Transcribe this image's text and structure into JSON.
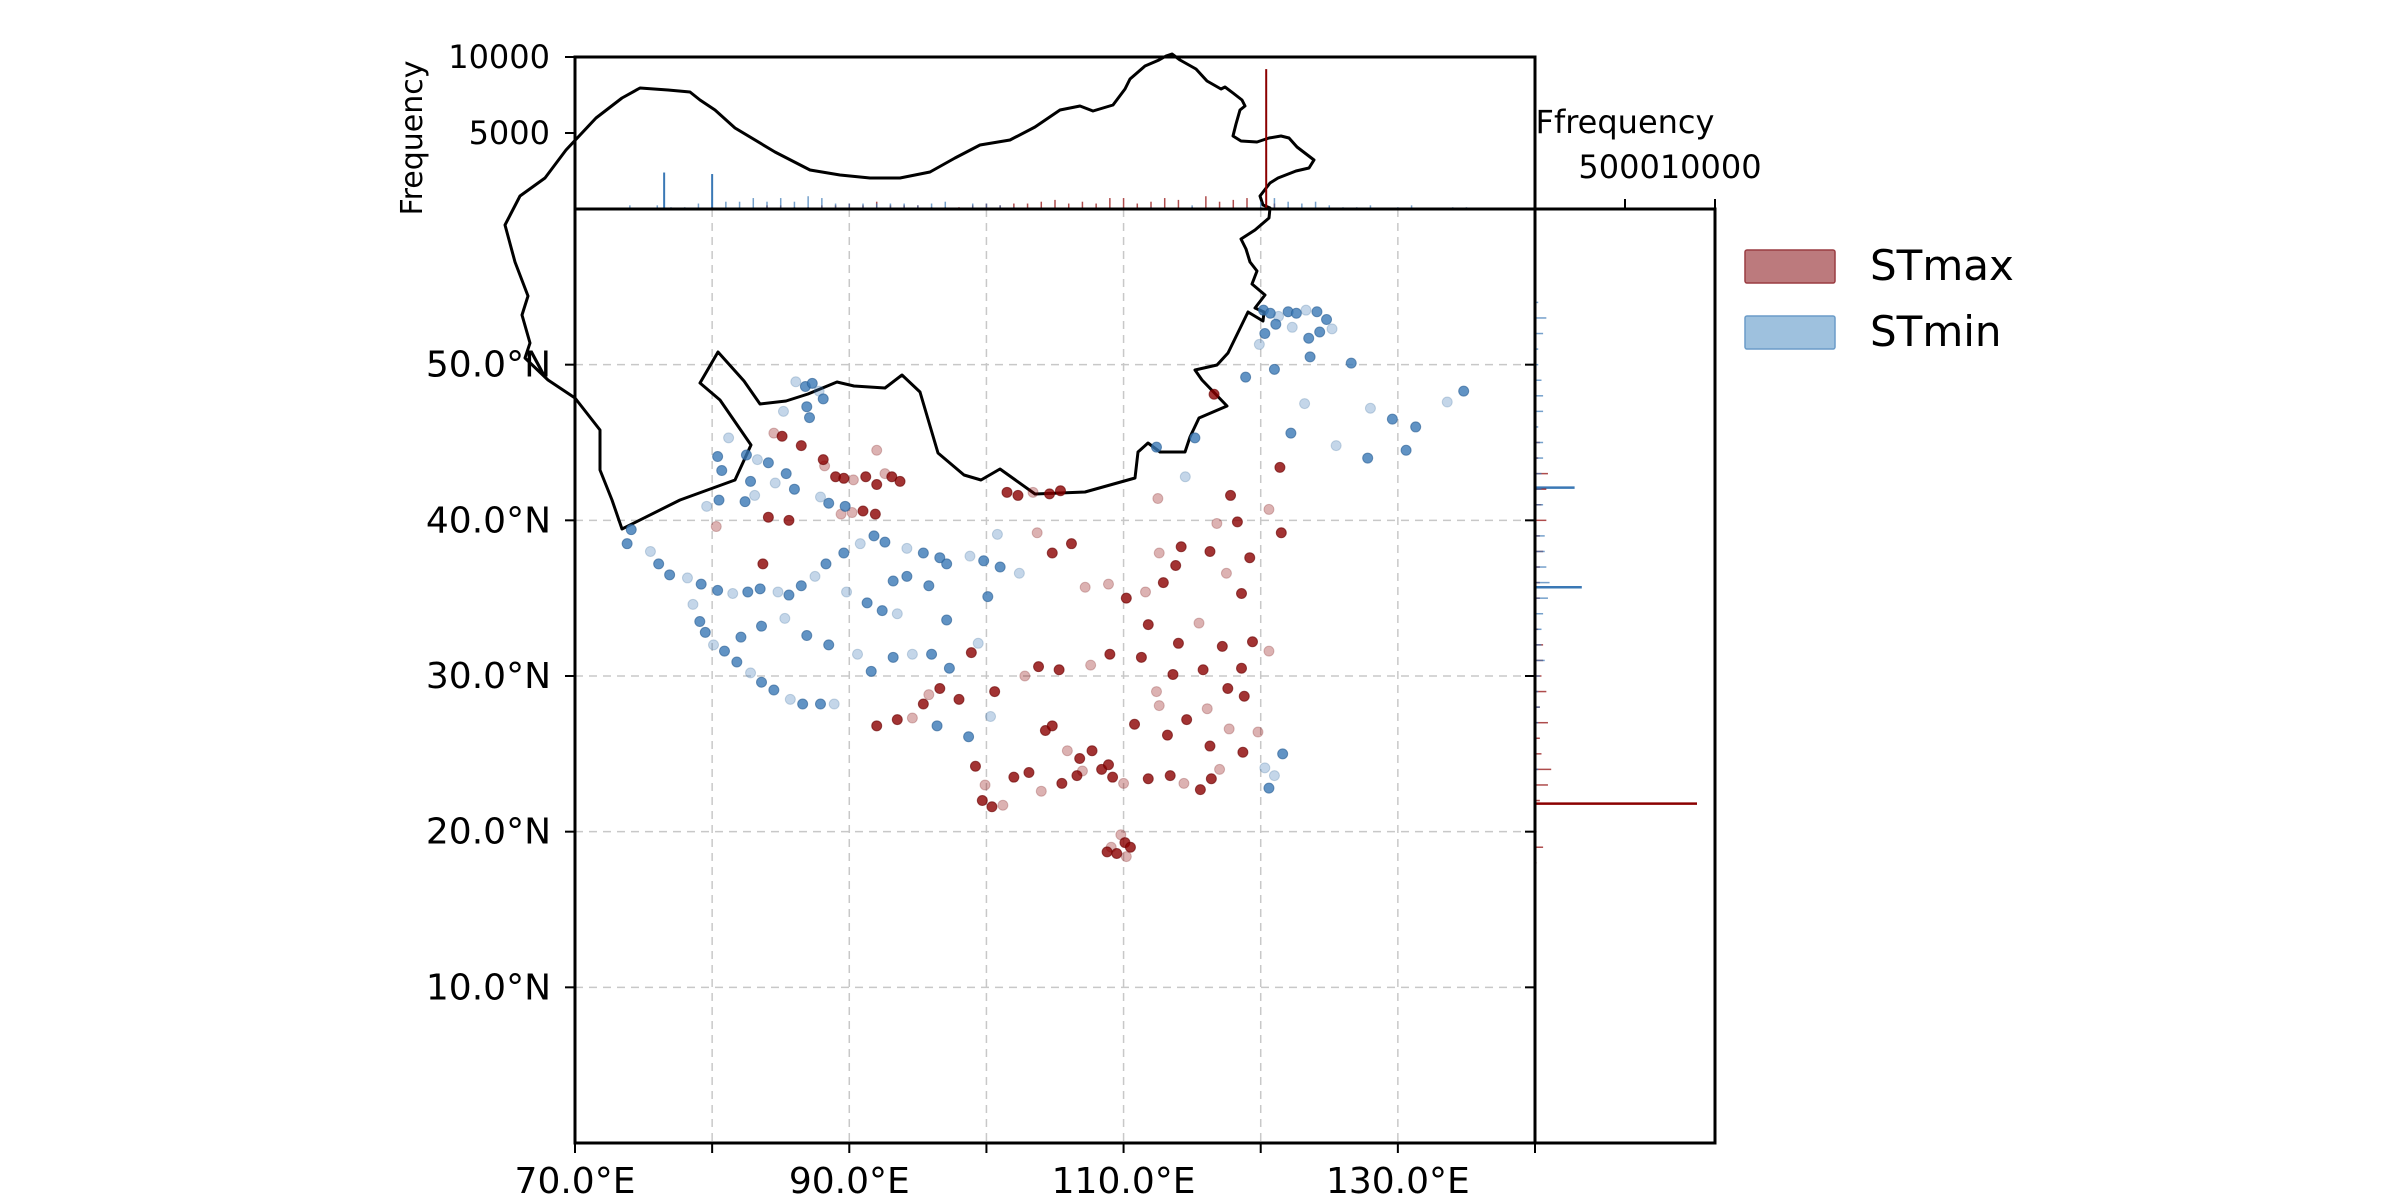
{
  "chart_data": {
    "type": "scatter",
    "subtype": "map scatter with marginal histograms",
    "title": "",
    "xlabel": "",
    "ylabel": "",
    "xlim": [
      70,
      140
    ],
    "ylim": [
      0,
      60
    ],
    "x_ticks": [
      70,
      90,
      110,
      130
    ],
    "x_tick_labels": [
      "70.0°E",
      "90.0°E",
      "110.0°E",
      "130.0°E"
    ],
    "y_ticks": [
      10,
      20,
      30,
      40,
      50
    ],
    "y_tick_labels": [
      "10.0°N",
      "20.0°N",
      "30.0°N",
      "40.0°N",
      "50.0°N"
    ],
    "grid": true,
    "legend_placement": "right",
    "colors": {
      "STmax": "#8b0000",
      "STmin": "#3a78b5",
      "STmax_fill": "#bc7a7d",
      "STmin_fill": "#9ec1de"
    },
    "series": [
      {
        "name": "STmax",
        "points": [
          [
            84.5,
            45.6
          ],
          [
            85.1,
            45.4
          ],
          [
            86.5,
            44.8
          ],
          [
            88.2,
            43.5
          ],
          [
            89.0,
            42.8
          ],
          [
            89.6,
            42.7
          ],
          [
            90.3,
            42.6
          ],
          [
            91.2,
            42.8
          ],
          [
            92.0,
            42.3
          ],
          [
            92.6,
            43.0
          ],
          [
            93.1,
            42.8
          ],
          [
            93.7,
            42.5
          ],
          [
            90.2,
            40.5
          ],
          [
            91.0,
            40.6
          ],
          [
            91.9,
            40.4
          ],
          [
            89.4,
            40.4
          ],
          [
            85.6,
            40.0
          ],
          [
            84.1,
            40.2
          ],
          [
            80.3,
            39.6
          ],
          [
            83.7,
            37.2
          ],
          [
            88.1,
            43.9
          ],
          [
            92.0,
            44.5
          ],
          [
            92.0,
            26.8
          ],
          [
            93.5,
            27.2
          ],
          [
            94.6,
            27.3
          ],
          [
            95.4,
            28.2
          ],
          [
            96.6,
            29.2
          ],
          [
            95.8,
            28.8
          ],
          [
            98.0,
            28.5
          ],
          [
            99.2,
            24.2
          ],
          [
            99.9,
            23.0
          ],
          [
            99.7,
            22.0
          ],
          [
            100.4,
            21.6
          ],
          [
            101.2,
            21.7
          ],
          [
            102.0,
            23.5
          ],
          [
            103.1,
            23.8
          ],
          [
            104.0,
            22.6
          ],
          [
            105.5,
            23.1
          ],
          [
            106.6,
            23.6
          ],
          [
            107.0,
            23.9
          ],
          [
            108.4,
            24.0
          ],
          [
            109.2,
            23.5
          ],
          [
            110.0,
            23.1
          ],
          [
            111.8,
            23.4
          ],
          [
            113.4,
            23.6
          ],
          [
            114.4,
            23.1
          ],
          [
            115.6,
            22.7
          ],
          [
            116.4,
            23.4
          ],
          [
            117.0,
            24.0
          ],
          [
            107.7,
            25.2
          ],
          [
            108.9,
            24.3
          ],
          [
            109.1,
            19.0
          ],
          [
            109.5,
            18.6
          ],
          [
            110.1,
            19.3
          ],
          [
            109.8,
            19.8
          ],
          [
            110.5,
            19.0
          ],
          [
            108.8,
            18.7
          ],
          [
            110.2,
            18.4
          ],
          [
            104.3,
            26.5
          ],
          [
            104.8,
            26.8
          ],
          [
            105.9,
            25.2
          ],
          [
            106.8,
            24.7
          ],
          [
            110.8,
            26.9
          ],
          [
            112.6,
            28.1
          ],
          [
            113.2,
            26.2
          ],
          [
            114.6,
            27.2
          ],
          [
            116.1,
            27.9
          ],
          [
            117.6,
            29.2
          ],
          [
            118.8,
            28.7
          ],
          [
            117.7,
            26.6
          ],
          [
            116.3,
            25.5
          ],
          [
            118.7,
            25.1
          ],
          [
            119.8,
            26.4
          ],
          [
            113.6,
            30.1
          ],
          [
            115.8,
            30.4
          ],
          [
            112.4,
            29.0
          ],
          [
            111.3,
            31.2
          ],
          [
            114.0,
            32.1
          ],
          [
            115.5,
            33.4
          ],
          [
            117.2,
            31.9
          ],
          [
            119.4,
            32.2
          ],
          [
            120.6,
            31.6
          ],
          [
            118.6,
            30.5
          ],
          [
            110.2,
            35.0
          ],
          [
            111.6,
            35.4
          ],
          [
            112.9,
            36.0
          ],
          [
            113.8,
            37.1
          ],
          [
            112.6,
            37.9
          ],
          [
            114.2,
            38.3
          ],
          [
            116.3,
            38.0
          ],
          [
            117.5,
            36.6
          ],
          [
            118.6,
            35.3
          ],
          [
            119.2,
            37.6
          ],
          [
            116.8,
            39.8
          ],
          [
            118.3,
            39.9
          ],
          [
            121.5,
            39.2
          ],
          [
            120.6,
            40.7
          ],
          [
            117.8,
            41.6
          ],
          [
            116.6,
            48.1
          ],
          [
            112.5,
            41.4
          ],
          [
            121.4,
            43.4
          ],
          [
            111.8,
            33.3
          ],
          [
            108.9,
            35.9
          ],
          [
            101.5,
            41.8
          ],
          [
            102.3,
            41.6
          ],
          [
            103.4,
            41.8
          ],
          [
            104.6,
            41.7
          ],
          [
            105.4,
            41.9
          ],
          [
            103.7,
            39.2
          ],
          [
            104.8,
            37.9
          ],
          [
            106.2,
            38.5
          ],
          [
            107.2,
            35.7
          ],
          [
            98.9,
            31.5
          ],
          [
            100.6,
            29.0
          ],
          [
            102.8,
            30.0
          ],
          [
            103.8,
            30.6
          ],
          [
            105.3,
            30.4
          ],
          [
            107.6,
            30.7
          ],
          [
            109.0,
            31.4
          ]
        ],
        "histogram_lon_peak": {
          "lon": 120.4,
          "count": 9200
        },
        "histogram_lat_peak": {
          "lat": 21.8,
          "count": 9000
        }
      },
      {
        "name": "STmin",
        "points": [
          [
            86.1,
            48.9
          ],
          [
            86.8,
            48.6
          ],
          [
            87.3,
            48.8
          ],
          [
            87.8,
            48.3
          ],
          [
            88.1,
            47.8
          ],
          [
            86.9,
            47.3
          ],
          [
            85.2,
            47.0
          ],
          [
            87.1,
            46.6
          ],
          [
            80.4,
            44.1
          ],
          [
            81.2,
            45.3
          ],
          [
            80.7,
            43.2
          ],
          [
            82.5,
            44.2
          ],
          [
            83.3,
            43.9
          ],
          [
            84.1,
            43.7
          ],
          [
            82.8,
            42.5
          ],
          [
            84.6,
            42.4
          ],
          [
            85.4,
            43.0
          ],
          [
            86.0,
            42.0
          ],
          [
            87.9,
            41.5
          ],
          [
            88.5,
            41.1
          ],
          [
            89.7,
            40.9
          ],
          [
            83.1,
            41.6
          ],
          [
            82.4,
            41.2
          ],
          [
            80.5,
            41.3
          ],
          [
            79.6,
            40.9
          ],
          [
            74.1,
            39.4
          ],
          [
            73.8,
            38.5
          ],
          [
            75.5,
            38.0
          ],
          [
            76.1,
            37.2
          ],
          [
            76.9,
            36.5
          ],
          [
            78.2,
            36.3
          ],
          [
            79.2,
            35.9
          ],
          [
            80.4,
            35.5
          ],
          [
            81.5,
            35.3
          ],
          [
            82.6,
            35.4
          ],
          [
            83.5,
            35.6
          ],
          [
            84.8,
            35.4
          ],
          [
            85.6,
            35.2
          ],
          [
            86.5,
            35.8
          ],
          [
            87.5,
            36.4
          ],
          [
            88.3,
            37.2
          ],
          [
            89.6,
            37.9
          ],
          [
            90.8,
            38.5
          ],
          [
            91.8,
            39.0
          ],
          [
            92.6,
            38.6
          ],
          [
            94.2,
            38.2
          ],
          [
            95.4,
            37.9
          ],
          [
            96.6,
            37.6
          ],
          [
            78.6,
            34.6
          ],
          [
            79.1,
            33.5
          ],
          [
            79.5,
            32.8
          ],
          [
            80.1,
            32.0
          ],
          [
            80.9,
            31.6
          ],
          [
            81.8,
            30.9
          ],
          [
            82.8,
            30.2
          ],
          [
            83.6,
            29.6
          ],
          [
            84.5,
            29.1
          ],
          [
            85.7,
            28.5
          ],
          [
            86.6,
            28.2
          ],
          [
            87.9,
            28.2
          ],
          [
            88.9,
            28.2
          ],
          [
            82.1,
            32.5
          ],
          [
            83.6,
            33.2
          ],
          [
            85.3,
            33.7
          ],
          [
            86.9,
            32.6
          ],
          [
            88.5,
            32.0
          ],
          [
            90.6,
            31.4
          ],
          [
            91.6,
            30.3
          ],
          [
            93.2,
            31.2
          ],
          [
            94.6,
            31.4
          ],
          [
            96.0,
            31.4
          ],
          [
            97.3,
            30.5
          ],
          [
            89.8,
            35.4
          ],
          [
            91.3,
            34.7
          ],
          [
            92.4,
            34.2
          ],
          [
            93.5,
            34.0
          ],
          [
            94.2,
            36.4
          ],
          [
            97.1,
            37.2
          ],
          [
            98.8,
            37.7
          ],
          [
            99.8,
            37.4
          ],
          [
            101.0,
            37.0
          ],
          [
            102.4,
            36.6
          ],
          [
            100.1,
            35.1
          ],
          [
            97.1,
            33.6
          ],
          [
            99.4,
            32.1
          ],
          [
            95.8,
            35.8
          ],
          [
            93.2,
            36.1
          ],
          [
            100.8,
            39.1
          ],
          [
            120.2,
            53.5
          ],
          [
            120.7,
            53.3
          ],
          [
            121.3,
            53.1
          ],
          [
            122.0,
            53.4
          ],
          [
            122.6,
            53.3
          ],
          [
            123.3,
            53.5
          ],
          [
            124.1,
            53.4
          ],
          [
            124.8,
            52.9
          ],
          [
            125.2,
            52.3
          ],
          [
            124.3,
            52.1
          ],
          [
            123.5,
            51.7
          ],
          [
            122.3,
            52.4
          ],
          [
            121.1,
            52.6
          ],
          [
            120.3,
            52.0
          ],
          [
            119.9,
            51.3
          ],
          [
            123.6,
            50.5
          ],
          [
            126.6,
            50.1
          ],
          [
            128.0,
            47.2
          ],
          [
            129.6,
            46.5
          ],
          [
            131.3,
            46.0
          ],
          [
            133.6,
            47.6
          ],
          [
            134.8,
            48.3
          ],
          [
            122.2,
            45.6
          ],
          [
            125.5,
            44.8
          ],
          [
            130.6,
            44.5
          ],
          [
            127.8,
            44.0
          ],
          [
            114.5,
            42.8
          ],
          [
            118.9,
            49.2
          ],
          [
            121.0,
            49.7
          ],
          [
            123.2,
            47.5
          ],
          [
            112.4,
            44.7
          ],
          [
            115.2,
            45.3
          ],
          [
            121.0,
            23.6
          ],
          [
            120.6,
            22.8
          ],
          [
            121.6,
            25.0
          ],
          [
            120.3,
            24.1
          ],
          [
            96.4,
            26.8
          ],
          [
            98.7,
            26.1
          ],
          [
            100.3,
            27.4
          ]
        ],
        "histogram_lon_peaks": [
          {
            "lon": 76.5,
            "count": 2400
          },
          {
            "lon": 80.0,
            "count": 2300
          }
        ],
        "histogram_lat_peaks": [
          {
            "lat": 35.7,
            "count": 2600
          },
          {
            "lat": 42.1,
            "count": 2200
          }
        ]
      }
    ],
    "top_histogram": {
      "ylabel": "Frequency",
      "ylim": [
        0,
        10000
      ],
      "y_ticks": [
        5000,
        10000
      ],
      "y_tick_labels": [
        "5000",
        "10000"
      ]
    },
    "right_histogram": {
      "xlabel": "Ffrequency",
      "xlim": [
        0,
        10000
      ],
      "x_ticks": [
        5000,
        10000
      ],
      "x_tick_labels": [
        "5000",
        "10000"
      ]
    }
  }
}
